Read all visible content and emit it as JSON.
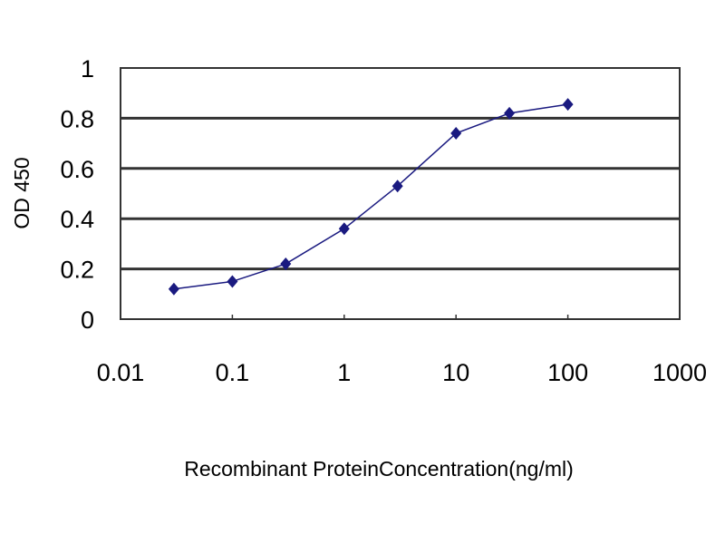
{
  "chart_data": {
    "type": "line",
    "title": "",
    "xlabel": "Recombinant ProteinConcentration(ng/ml)",
    "ylabel": "OD 450",
    "x_scale": "log",
    "xlim": [
      0.01,
      1000
    ],
    "ylim": [
      0,
      1
    ],
    "x_ticks": [
      "0.01",
      "0.1",
      "1",
      "10",
      "100",
      "1000"
    ],
    "y_ticks": [
      "0",
      "0.2",
      "0.4",
      "0.6",
      "0.8",
      "1"
    ],
    "grid": "horizontal",
    "series": [
      {
        "x": [
          0.03,
          0.1,
          0.3,
          1,
          3,
          10,
          30,
          100
        ],
        "y": [
          0.12,
          0.15,
          0.22,
          0.36,
          0.53,
          0.74,
          0.82,
          0.855
        ],
        "color": "#1a1a80",
        "marker": "diamond"
      }
    ]
  }
}
